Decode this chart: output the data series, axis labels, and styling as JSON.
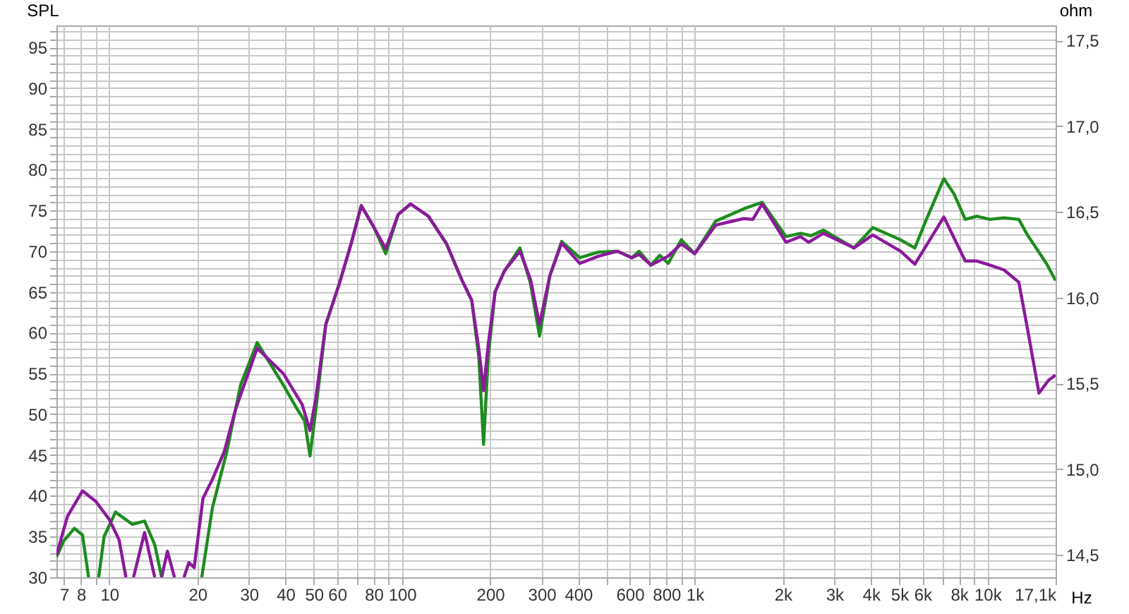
{
  "chart_data": {
    "type": "line",
    "xlabel": "Hz",
    "ylabel": "SPL",
    "y2label": "ohm",
    "log": "x",
    "grid": true,
    "marker": "none",
    "line_style": "solid",
    "xlim": [
      6.6,
      17100
    ],
    "ylim": [
      30,
      97.7
    ],
    "y2lim": [
      14.368,
      17.588
    ],
    "xticks": [
      7,
      8,
      {
        "value": 9,
        "label": null
      },
      10,
      20,
      30,
      40,
      50,
      60,
      {
        "value": 70,
        "label": null
      },
      80,
      {
        "value": 90,
        "label": null
      },
      100,
      200,
      300,
      400,
      {
        "value": 500,
        "label": null
      },
      600,
      {
        "value": 700,
        "label": null
      },
      800,
      {
        "value": 900,
        "label": null
      },
      {
        "value": 1000,
        "label": "1k"
      },
      {
        "value": 2000,
        "label": "2k"
      },
      {
        "value": 3000,
        "label": "3k"
      },
      {
        "value": 4000,
        "label": "4k"
      },
      {
        "value": 5000,
        "label": "5k"
      },
      {
        "value": 6000,
        "label": "6k"
      },
      {
        "value": 7000,
        "label": null
      },
      {
        "value": 8000,
        "label": "8k"
      },
      {
        "value": 9000,
        "label": null
      },
      {
        "value": 10000,
        "label": "10k"
      },
      {
        "value": 17100,
        "label": "17,1k"
      }
    ],
    "yticks": [
      30,
      {
        "value": 31,
        "label": null
      },
      {
        "value": 32,
        "label": null
      },
      {
        "value": 33,
        "label": null
      },
      {
        "value": 34,
        "label": null
      },
      35,
      {
        "value": 36,
        "label": null
      },
      {
        "value": 37,
        "label": null
      },
      {
        "value": 38,
        "label": null
      },
      {
        "value": 39,
        "label": null
      },
      40,
      {
        "value": 41,
        "label": null
      },
      {
        "value": 42,
        "label": null
      },
      {
        "value": 43,
        "label": null
      },
      {
        "value": 44,
        "label": null
      },
      45,
      {
        "value": 46,
        "label": null
      },
      {
        "value": 47,
        "label": null
      },
      {
        "value": 48,
        "label": null
      },
      {
        "value": 49,
        "label": null
      },
      50,
      {
        "value": 51,
        "label": null
      },
      {
        "value": 52,
        "label": null
      },
      {
        "value": 53,
        "label": null
      },
      {
        "value": 54,
        "label": null
      },
      55,
      {
        "value": 56,
        "label": null
      },
      {
        "value": 57,
        "label": null
      },
      {
        "value": 58,
        "label": null
      },
      {
        "value": 59,
        "label": null
      },
      60,
      {
        "value": 61,
        "label": null
      },
      {
        "value": 62,
        "label": null
      },
      {
        "value": 63,
        "label": null
      },
      {
        "value": 64,
        "label": null
      },
      65,
      {
        "value": 66,
        "label": null
      },
      {
        "value": 67,
        "label": null
      },
      {
        "value": 68,
        "label": null
      },
      {
        "value": 69,
        "label": null
      },
      70,
      {
        "value": 71,
        "label": null
      },
      {
        "value": 72,
        "label": null
      },
      {
        "value": 73,
        "label": null
      },
      {
        "value": 74,
        "label": null
      },
      75,
      {
        "value": 76,
        "label": null
      },
      {
        "value": 77,
        "label": null
      },
      {
        "value": 78,
        "label": null
      },
      {
        "value": 79,
        "label": null
      },
      80,
      {
        "value": 81,
        "label": null
      },
      {
        "value": 82,
        "label": null
      },
      {
        "value": 83,
        "label": null
      },
      {
        "value": 84,
        "label": null
      },
      85,
      {
        "value": 86,
        "label": null
      },
      {
        "value": 87,
        "label": null
      },
      {
        "value": 88,
        "label": null
      },
      {
        "value": 89,
        "label": null
      },
      90,
      {
        "value": 91,
        "label": null
      },
      {
        "value": 92,
        "label": null
      },
      {
        "value": 93,
        "label": null
      },
      {
        "value": 94,
        "label": null
      },
      95,
      {
        "value": 96,
        "label": null
      },
      {
        "value": 97,
        "label": null
      }
    ],
    "y2ticks": [
      {
        "value": 14.5,
        "label": "14,5"
      },
      {
        "value": 15.0,
        "label": "15,0"
      },
      {
        "value": 15.5,
        "label": "15,5"
      },
      {
        "value": 16.0,
        "label": "16,0"
      },
      {
        "value": 16.5,
        "label": "16,5"
      },
      {
        "value": 17.0,
        "label": "17,0"
      },
      {
        "value": 17.5,
        "label": "17,5"
      }
    ],
    "series": [
      {
        "color": "#1e8c1e",
        "x": [
          6.6,
          7.0,
          7.6,
          8.1,
          8.5,
          8.8,
          9.2,
          9.6,
          10.5,
          12.0,
          13.2,
          14.3,
          15.1,
          17,
          20.7,
          22.5,
          25.2,
          28.1,
          32,
          39.3,
          43.9,
          46.5,
          48.5,
          50.8,
          54.9,
          61.3,
          67,
          72.6,
          80,
          88,
          97,
          107,
          123,
          142,
          160,
          173,
          183,
          190,
          197,
          208,
          224,
          253,
          275,
          295,
          320,
          351,
          405,
          470,
          545,
          610,
          646,
          709,
          760,
          812,
          900,
          1000,
          1180,
          1470,
          1700,
          2050,
          2300,
          2500,
          2750,
          3500,
          4060,
          5050,
          5650,
          6200,
          7100,
          7700,
          8400,
          9200,
          10200,
          11400,
          12800,
          13700,
          15900,
          17100
        ],
        "values": [
          32.5,
          34.5,
          36.0,
          35.2,
          30,
          null,
          30,
          35,
          38.0,
          36.5,
          36.9,
          34.0,
          30,
          null,
          30,
          38.5,
          45.4,
          53.6,
          58.8,
          53.6,
          50.6,
          49.2,
          44.9,
          50.6,
          61,
          66.2,
          70.9,
          75.6,
          73,
          69.7,
          74.5,
          75.8,
          74.3,
          70.9,
          66.5,
          64,
          57,
          46.3,
          57,
          65,
          67.6,
          70.4,
          66,
          59.6,
          67,
          71.2,
          69.2,
          69.9,
          70,
          69.2,
          70.0,
          68.3,
          69.5,
          68.5,
          71.4,
          69.7,
          73.7,
          75.2,
          76,
          71.8,
          72.2,
          71.9,
          72.6,
          70.4,
          72.9,
          71.4,
          70.4,
          74,
          78.9,
          77,
          73.9,
          74.3,
          73.9,
          74.1,
          73.9,
          72,
          68.5,
          66.4
        ]
      },
      {
        "color": "#8b1a9b",
        "x": [
          6.6,
          7.2,
          8.1,
          9.0,
          10,
          10.8,
          11.4,
          11.7,
          12.1,
          13.2,
          14.3,
          14.7,
          15.1,
          15.8,
          16.7,
          17.3,
          18.0,
          18.7,
          19.5,
          20.9,
          22.5,
          24.7,
          27,
          32,
          39.3,
          45.6,
          48.5,
          50.8,
          54.9,
          61.3,
          67,
          72.6,
          80,
          88,
          97,
          107,
          123,
          142,
          160,
          173,
          183,
          190,
          197,
          208,
          224,
          253,
          275,
          295,
          320,
          351,
          405,
          470,
          545,
          610,
          646,
          709,
          812,
          900,
          1000,
          1180,
          1470,
          1580,
          1700,
          2050,
          2300,
          2450,
          2750,
          3500,
          4060,
          5050,
          5650,
          7100,
          8400,
          9200,
          10200,
          11400,
          12800,
          13700,
          15000,
          16200,
          17100
        ],
        "values": [
          32.7,
          37.5,
          40.6,
          39.3,
          37.1,
          34.6,
          30,
          null,
          30,
          35.5,
          30,
          null,
          30,
          33.2,
          30,
          null,
          30,
          31.8,
          31.2,
          39.7,
          42,
          45.4,
          50.6,
          58.1,
          55,
          51.2,
          48,
          52,
          61,
          66.2,
          70.9,
          75.6,
          73,
          70.3,
          74.5,
          75.8,
          74.3,
          70.9,
          66.5,
          64,
          58,
          52.9,
          58.5,
          65,
          67.6,
          70,
          66.5,
          61,
          67,
          71,
          68.5,
          69.4,
          70,
          69.2,
          69.6,
          68.3,
          69.4,
          70.9,
          69.7,
          73.2,
          74,
          73.9,
          75.8,
          71.1,
          71.8,
          71.1,
          72.2,
          70.4,
          72.0,
          70,
          68.4,
          74.2,
          68.8,
          68.8,
          68.3,
          67.7,
          66.2,
          60.5,
          52.6,
          54.2,
          54.8
        ]
      }
    ]
  }
}
